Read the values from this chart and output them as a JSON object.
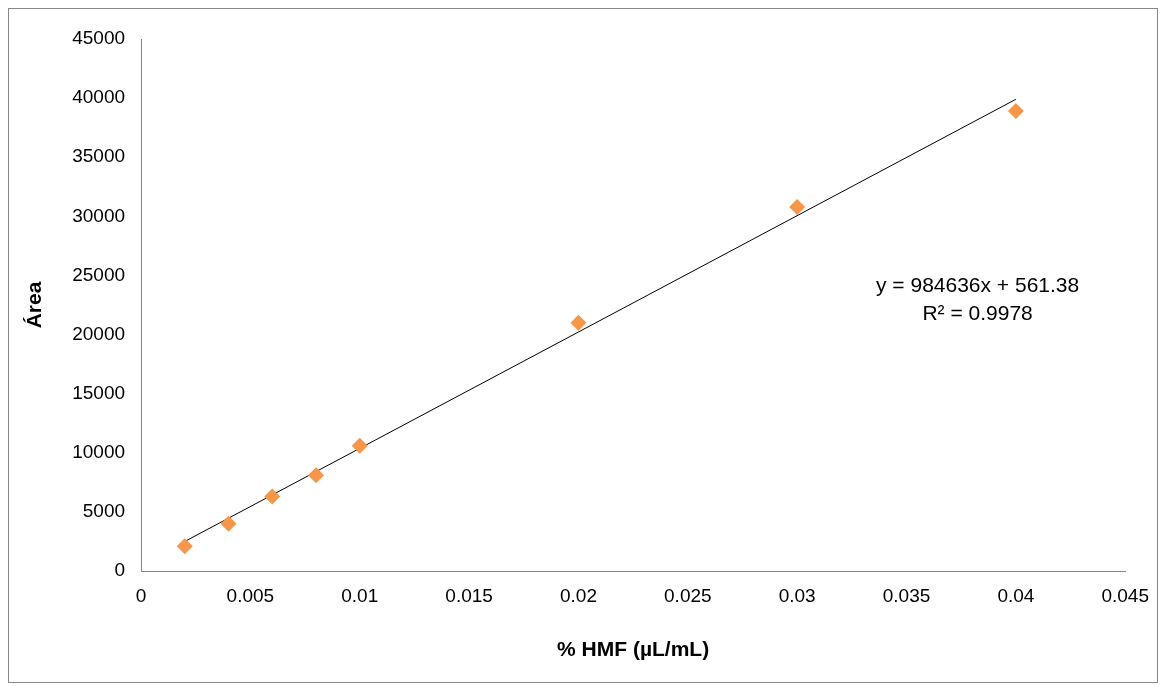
{
  "chart_data": {
    "type": "scatter",
    "xlabel": "% HMF (µL/mL)",
    "ylabel": "Área",
    "x": [
      0.002,
      0.004,
      0.006,
      0.008,
      0.01,
      0.02,
      0.03,
      0.04
    ],
    "series": [
      {
        "color": "#f79646",
        "marker": "diamond",
        "values": [
          2100,
          4000,
          6300,
          8100,
          10600,
          21000,
          30800,
          38900
        ]
      },
      {
        "type": "line",
        "color": "#000000",
        "marker": "none",
        "x": [
          0.002,
          0.04
        ],
        "values": [
          2500,
          39900
        ]
      }
    ],
    "xlim": [
      0,
      0.045
    ],
    "xticks": [
      0,
      0.005,
      0.01,
      0.015,
      0.02,
      0.025,
      0.03,
      0.035,
      0.04,
      0.045
    ],
    "ylim": [
      0,
      45000
    ],
    "yticks": [
      0,
      5000,
      10000,
      15000,
      20000,
      25000,
      30000,
      35000,
      40000,
      45000
    ],
    "grid": false,
    "legend": false,
    "annotations": [
      "y = 984636x + 561.38",
      "R² = 0.9978"
    ]
  }
}
